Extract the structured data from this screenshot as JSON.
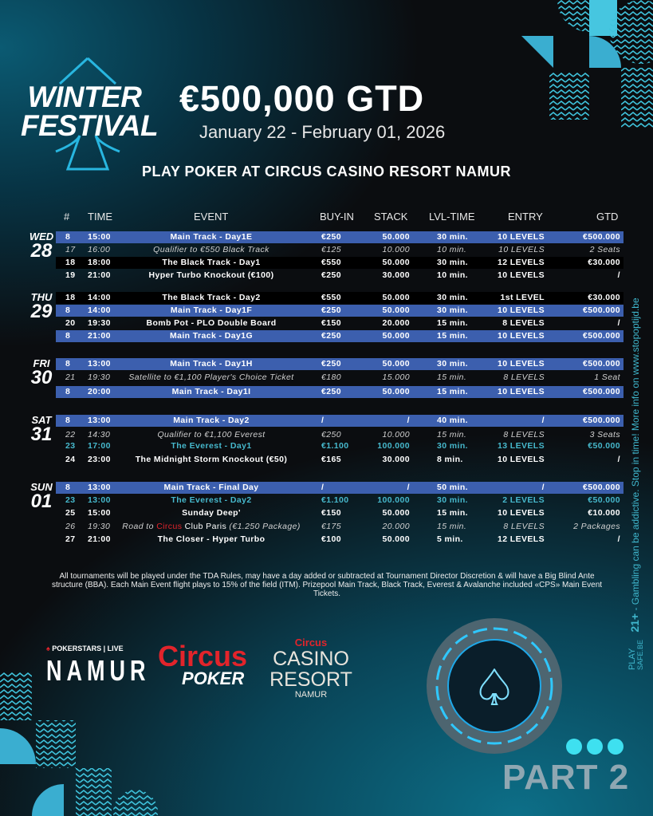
{
  "logo": {
    "line1": "WINTER",
    "line2": "FESTIVAL"
  },
  "title": "€500,000 GTD",
  "dates": "January 22 - February 01, 2026",
  "venue": "PLAY POKER AT CIRCUS CASINO RESORT NAMUR",
  "headers": {
    "num": "#",
    "time": "TIME",
    "event": "EVENT",
    "buyin": "BUY-IN",
    "stack": "STACK",
    "lvl": "LVL-TIME",
    "entry": "ENTRY",
    "gtd": "GTD"
  },
  "colors": {
    "blue_row": "#3c5fae",
    "teal_text": "#46b8cc",
    "red": "#e2242b",
    "accent": "#3ee0f0"
  },
  "days": [
    {
      "day": "WED",
      "date": "28",
      "rows": [
        {
          "style": "blue",
          "num": "8",
          "time": "15:00",
          "event": "Main Track - Day1E",
          "buyin": "€250",
          "stack": "50.000",
          "lvl": "30 min.",
          "entry": "10 LEVELS",
          "gtd": "€500.000"
        },
        {
          "style": "italic",
          "num": "17",
          "time": "16:00",
          "event": "Qualifier to €550 Black Track",
          "buyin": "€125",
          "stack": "10.000",
          "lvl": "10 min.",
          "entry": "10 LEVELS",
          "gtd": "2 Seats"
        },
        {
          "style": "black",
          "num": "18",
          "time": "18:00",
          "event": "The Black Track - Day1",
          "buyin": "€550",
          "stack": "50.000",
          "lvl": "30 min.",
          "entry": "12 LEVELS",
          "gtd": "€30.000"
        },
        {
          "style": "normal",
          "num": "19",
          "time": "21:00",
          "event": "Hyper Turbo Knockout (€100)",
          "buyin": "€250",
          "stack": "30.000",
          "lvl": "10 min.",
          "entry": "10 LEVELS",
          "gtd": "/"
        }
      ]
    },
    {
      "day": "THU",
      "date": "29",
      "rows": [
        {
          "style": "black",
          "num": "18",
          "time": "14:00",
          "event": "The Black Track - Day2",
          "buyin": "€550",
          "stack": "50.000",
          "lvl": "30 min.",
          "entry": "1st LEVEL",
          "gtd": "€30.000"
        },
        {
          "style": "blue",
          "num": "8",
          "time": "14:00",
          "event": "Main Track - Day1F",
          "buyin": "€250",
          "stack": "50.000",
          "lvl": "30 min.",
          "entry": "10 LEVELS",
          "gtd": "€500.000"
        },
        {
          "style": "normal",
          "num": "20",
          "time": "19:30",
          "event": "Bomb Pot - PLO Double Board",
          "buyin": "€150",
          "stack": "20.000",
          "lvl": "15 min.",
          "entry": "8 LEVELS",
          "gtd": "/"
        },
        {
          "style": "blue",
          "num": "8",
          "time": "21:00",
          "event": "Main Track - Day1G",
          "buyin": "€250",
          "stack": "50.000",
          "lvl": "15 min.",
          "entry": "10 LEVELS",
          "gtd": "€500.000"
        }
      ]
    },
    {
      "day": "FRI",
      "date": "30",
      "rows": [
        {
          "style": "blue",
          "num": "8",
          "time": "13:00",
          "event": "Main Track - Day1H",
          "buyin": "€250",
          "stack": "50.000",
          "lvl": "30 min.",
          "entry": "10 LEVELS",
          "gtd": "€500.000"
        },
        {
          "style": "italic",
          "num": "21",
          "time": "19:30",
          "event": "Satellite to €1,100 Player's Choice Ticket",
          "buyin": "€180",
          "stack": "15.000",
          "lvl": "15 min.",
          "entry": "8 LEVELS",
          "gtd": "1 Seat"
        },
        {
          "style": "blue",
          "num": "8",
          "time": "20:00",
          "event": "Main Track - Day1I",
          "buyin": "€250",
          "stack": "50.000",
          "lvl": "15 min.",
          "entry": "10 LEVELS",
          "gtd": "€500.000"
        }
      ]
    },
    {
      "day": "SAT",
      "date": "31",
      "rows": [
        {
          "style": "blue",
          "num": "8",
          "time": "13:00",
          "event": "Main Track - Day2",
          "buyin": "/",
          "stack": "/",
          "lvl": "40 min.",
          "entry": "/",
          "gtd": "€500.000"
        },
        {
          "style": "italic",
          "num": "22",
          "time": "14:30",
          "event": "Qualifier to €1,100 Everest",
          "buyin": "€250",
          "stack": "10.000",
          "lvl": "15 min.",
          "entry": "8 LEVELS",
          "gtd": "3 Seats"
        },
        {
          "style": "teal",
          "num": "23",
          "time": "17:00",
          "event": "The Everest - Day1",
          "buyin": "€1.100",
          "stack": "100.000",
          "lvl": "30 min.",
          "entry": "13 LEVELS",
          "gtd": "€50.000"
        },
        {
          "style": "normal",
          "num": "24",
          "time": "23:00",
          "event": "The Midnight Storm Knockout (€50)",
          "buyin": "€165",
          "stack": "30.000",
          "lvl": "8 min.",
          "entry": "10 LEVELS",
          "gtd": "/"
        }
      ]
    },
    {
      "day": "SUN",
      "date": "01",
      "rows": [
        {
          "style": "blue",
          "num": "8",
          "time": "13:00",
          "event": "Main Track - Final Day",
          "buyin": "/",
          "stack": "/",
          "lvl": "50 min.",
          "entry": "/",
          "gtd": "€500.000"
        },
        {
          "style": "teal",
          "num": "23",
          "time": "13:00",
          "event": "The Everest - Day2",
          "buyin": "€1.100",
          "stack": "100.000",
          "lvl": "30 min.",
          "entry": "2 LEVELS",
          "gtd": "€50.000"
        },
        {
          "style": "normal",
          "num": "25",
          "time": "15:00",
          "event": "Sunday Deep'",
          "buyin": "€150",
          "stack": "50.000",
          "lvl": "15 min.",
          "entry": "10 LEVELS",
          "gtd": "€10.000"
        },
        {
          "style": "italic",
          "num": "26",
          "time": "19:30",
          "event_parts": [
            "Road to ",
            "Circus",
            " Club Paris",
            " (€1.250 Package)"
          ],
          "buyin": "€175",
          "stack": "20.000",
          "lvl": "15 min.",
          "entry": "8 LEVELS",
          "gtd": "2 Packages"
        },
        {
          "style": "normal",
          "num": "27",
          "time": "21:00",
          "event": "The Closer -  Hyper Turbo",
          "buyin": "€100",
          "stack": "50.000",
          "lvl": "5 min.",
          "entry": "12 LEVELS",
          "gtd": "/"
        }
      ]
    }
  ],
  "footnote": "All tournaments will be played under the TDA Rules, may have a day added or subtracted at Tournament Director Discretion & will have a Big Blind Ante structure (BBA). Each Main Event flight plays to 15% of the field (ITM). Prizepool Main Track, Black Track, Everest & Avalanche included «CPS» Main Event Tickets.",
  "sidebar": {
    "play": "PLAY",
    "safe": "SAFE.BE",
    "age": "21+",
    "text": " - Gambling can be addictive. Stop in time! More info on www.stopoptijd.be"
  },
  "sponsors": {
    "pokerstars": "POKERSTARS | LIVE",
    "namur": "NAMUR",
    "circus": "Circus",
    "poker": "POKER",
    "casino_small": "Circus",
    "casino": "CASINO",
    "resort": "RESORT",
    "casino_city": "NAMUR"
  },
  "part": "PART 2"
}
